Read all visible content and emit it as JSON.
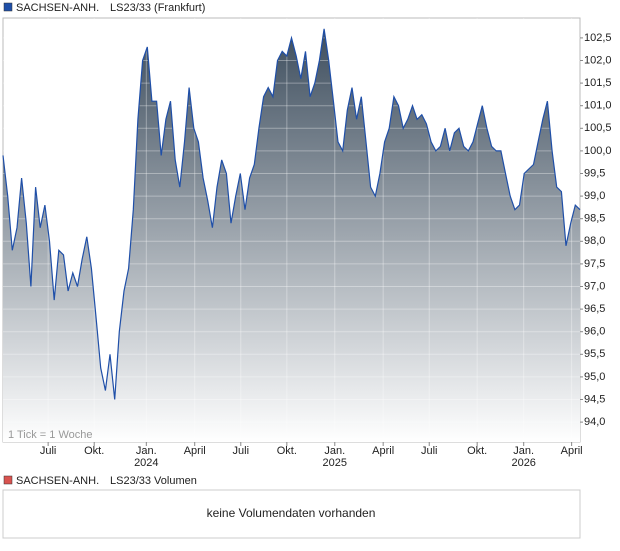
{
  "chart_data": {
    "type": "area",
    "series": [
      {
        "name": "SACHSEN-ANH.",
        "market": "LS23/33 (Frankfurt)",
        "color": "#1f4fa8",
        "values": [
          99.9,
          99.0,
          97.8,
          98.3,
          99.4,
          98.4,
          97.0,
          99.2,
          98.3,
          98.8,
          98.0,
          96.7,
          97.8,
          97.7,
          96.9,
          97.3,
          97.0,
          97.6,
          98.1,
          97.4,
          96.3,
          95.2,
          94.7,
          95.5,
          94.5,
          96.0,
          96.9,
          97.4,
          98.7,
          100.7,
          102.0,
          102.3,
          101.1,
          101.1,
          99.9,
          100.7,
          101.1,
          99.8,
          99.2,
          100.2,
          101.4,
          100.5,
          100.2,
          99.4,
          98.9,
          98.3,
          99.2,
          99.8,
          99.5,
          98.4,
          99.0,
          99.5,
          98.7,
          99.4,
          99.7,
          100.5,
          101.2,
          101.4,
          101.2,
          102.0,
          102.2,
          102.1,
          102.5,
          102.1,
          101.6,
          102.2,
          101.2,
          101.5,
          102.0,
          102.7,
          102.0,
          101.1,
          100.2,
          100.0,
          100.9,
          101.4,
          100.7,
          101.2,
          100.2,
          99.2,
          99.0,
          99.5,
          100.2,
          100.5,
          101.2,
          101.0,
          100.5,
          100.7,
          101.0,
          100.7,
          100.8,
          100.6,
          100.2,
          100.0,
          100.1,
          100.5,
          100.0,
          100.4,
          100.5,
          100.1,
          100.0,
          100.2,
          100.6,
          101.0,
          100.5,
          100.1,
          100.0,
          100.0,
          99.5,
          99.0,
          98.7,
          98.8,
          99.5,
          99.6,
          99.7,
          100.2,
          100.7,
          101.1,
          100.0,
          99.2,
          99.1,
          97.9,
          98.4,
          98.8,
          98.7
        ]
      }
    ],
    "ylim": [
      93.56,
      102.94
    ],
    "yticks": [
      {
        "value": 94,
        "label": "94,0"
      },
      {
        "value": 94.5,
        "label": "94,5"
      },
      {
        "value": 95,
        "label": "95,0"
      },
      {
        "value": 95.5,
        "label": "95,5"
      },
      {
        "value": 96,
        "label": "96,0"
      },
      {
        "value": 96.5,
        "label": "96,5"
      },
      {
        "value": 97,
        "label": "97,0"
      },
      {
        "value": 97.5,
        "label": "97,5"
      },
      {
        "value": 98,
        "label": "98,0"
      },
      {
        "value": 98.5,
        "label": "98,5"
      },
      {
        "value": 99,
        "label": "99,0"
      },
      {
        "value": 99.5,
        "label": "99,5"
      },
      {
        "value": 100,
        "label": "100,0"
      },
      {
        "value": 100.5,
        "label": "100,5"
      },
      {
        "value": 101,
        "label": "101,0"
      },
      {
        "value": 101.5,
        "label": "101,5"
      },
      {
        "value": 102,
        "label": "102,0"
      },
      {
        "value": 102.5,
        "label": "102,5"
      }
    ],
    "xlim": [
      0,
      124
    ],
    "xticks": [
      {
        "value": 9.7,
        "label": "Juli"
      },
      {
        "value": 19.6,
        "label": "Okt."
      },
      {
        "value": 30.8,
        "label": "Jan."
      },
      {
        "value": 41.2,
        "label": "April"
      },
      {
        "value": 51.1,
        "label": "Juli"
      },
      {
        "value": 61.0,
        "label": "Okt."
      },
      {
        "value": 71.3,
        "label": "Jan."
      },
      {
        "value": 81.7,
        "label": "April"
      },
      {
        "value": 91.6,
        "label": "Juli"
      },
      {
        "value": 101.9,
        "label": "Okt."
      },
      {
        "value": 111.9,
        "label": "Jan."
      },
      {
        "value": 122.2,
        "label": "April"
      }
    ],
    "year_labels": [
      {
        "value": 30.8,
        "label": "2024"
      },
      {
        "value": 71.3,
        "label": "2025"
      },
      {
        "value": 111.9,
        "label": "2026"
      }
    ],
    "annotation": "1 Tick = 1 Woche",
    "grid": true
  },
  "volume_panel": {
    "name": "SACHSEN-ANH.",
    "label": "LS23/33 Volumen",
    "color": "#d9534f",
    "message": "keine Volumendaten vorhanden"
  }
}
